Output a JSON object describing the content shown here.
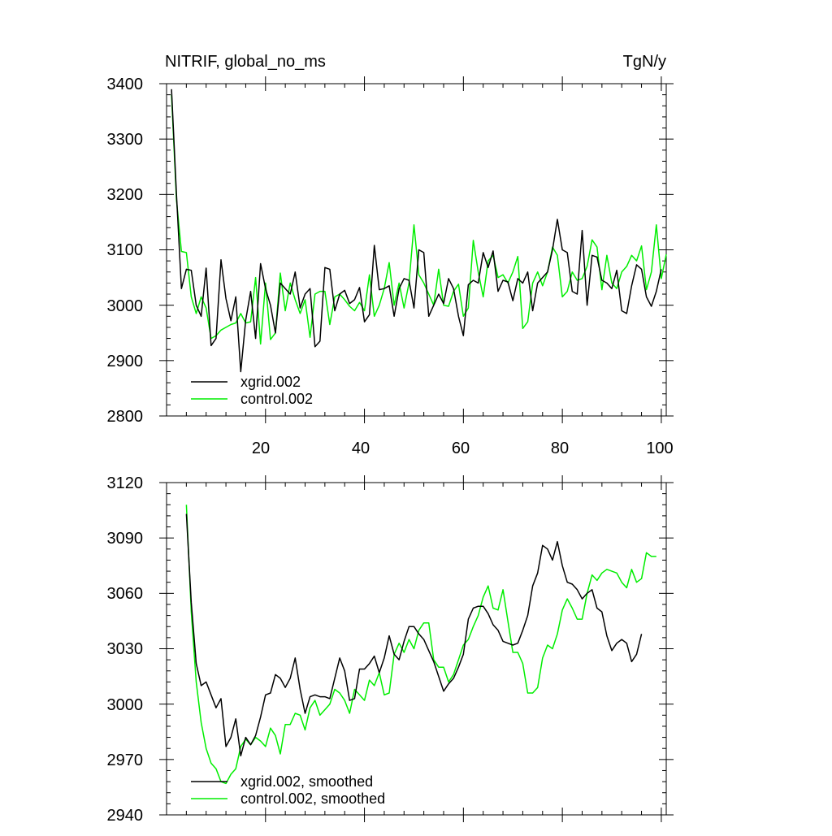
{
  "charts": [
    {
      "title_left": "NITRIF, global_no_ms",
      "title_right": "TgN/y",
      "y_ticks": [
        "3400",
        "3300",
        "3200",
        "3100",
        "3000",
        "2900",
        "2800"
      ],
      "x_ticks": [
        "20",
        "40",
        "60",
        "80",
        "100"
      ],
      "legend": [
        "xgrid.002",
        "control.002"
      ]
    },
    {
      "y_ticks": [
        "3120",
        "3090",
        "3060",
        "3030",
        "3000",
        "2970",
        "2940"
      ],
      "legend": [
        "xgrid.002, smoothed",
        "control.002, smoothed"
      ]
    }
  ],
  "colors": {
    "xgrid": "#000000",
    "control": "#00ee00"
  },
  "chart_data": [
    {
      "type": "line",
      "title": "NITRIF, global_no_ms",
      "units": "TgN/y",
      "xlim": [
        0,
        101
      ],
      "ylim": [
        2800,
        3400
      ],
      "x_ticks": [
        20,
        40,
        60,
        80,
        100
      ],
      "y_ticks": [
        2800,
        2900,
        3000,
        3100,
        3200,
        3300,
        3400
      ],
      "legend_position": "bottom-left",
      "series": [
        {
          "name": "xgrid.002",
          "color": "#000000",
          "x_start": 1,
          "values": [
            3390,
            3200,
            3030,
            3065,
            3063,
            3000,
            2980,
            3067,
            2927,
            2940,
            3082,
            3012,
            2972,
            3015,
            2880,
            2973,
            3025,
            2940,
            3075,
            3030,
            3000,
            2950,
            3040,
            3030,
            3020,
            3060,
            2995,
            3020,
            3030,
            2925,
            2935,
            3068,
            3065,
            2990,
            3020,
            3027,
            3003,
            3010,
            3032,
            2970,
            2983,
            3108,
            3028,
            3030,
            3035,
            2980,
            3030,
            3048,
            3045,
            2995,
            3100,
            3095,
            2980,
            3000,
            3020,
            3003,
            3048,
            3030,
            2980,
            2945,
            3037,
            3045,
            3040,
            3095,
            3068,
            3098,
            3025,
            3045,
            3042,
            3008,
            3048,
            3040,
            3060,
            2990,
            3040,
            3050,
            3060,
            3100,
            3155,
            3100,
            3095,
            3025,
            3020,
            3135,
            3000,
            3090,
            3087,
            3045,
            3040,
            3030,
            3063,
            2990,
            2985,
            3035,
            3073,
            3065,
            3015,
            2998,
            3025,
            3065
          ]
        },
        {
          "name": "control.002",
          "color": "#00ee00",
          "x_start": 1,
          "values": [
            3380,
            3190,
            3097,
            3095,
            3015,
            2985,
            3015,
            2995,
            2940,
            2945,
            2955,
            2960,
            2965,
            2968,
            2985,
            2968,
            2970,
            3050,
            2930,
            3040,
            2938,
            2950,
            3058,
            2990,
            3040,
            3010,
            2985,
            3010,
            2942,
            3020,
            3025,
            3025,
            2965,
            3015,
            3020,
            3010,
            2998,
            2990,
            3005,
            2990,
            3055,
            2980,
            3000,
            3030,
            3077,
            3000,
            3040,
            2995,
            3040,
            3145,
            3055,
            3040,
            3020,
            3000,
            3065,
            3000,
            2998,
            3025,
            3038,
            2980,
            2995,
            3117,
            3060,
            3015,
            3080,
            3090,
            3050,
            3055,
            3040,
            3060,
            3088,
            2958,
            2970,
            3040,
            3060,
            3035,
            3060,
            3105,
            3090,
            3015,
            3025,
            3060,
            3045,
            3048,
            3070,
            3118,
            3105,
            3028,
            3090,
            3040,
            3030,
            3060,
            3070,
            3090,
            3080,
            3107,
            3028,
            3060,
            3145,
            3048,
            3092
          ]
        }
      ]
    },
    {
      "type": "line",
      "title": "",
      "xlim": [
        0,
        101
      ],
      "ylim": [
        2940,
        3120
      ],
      "y_ticks": [
        2940,
        2970,
        3000,
        3030,
        3060,
        3090,
        3120
      ],
      "legend_position": "bottom-left",
      "series": [
        {
          "name": "xgrid.002, smoothed",
          "color": "#000000",
          "x_start": 4,
          "values": [
            3103,
            3055,
            3022,
            3010,
            3012,
            3005,
            2998,
            3003,
            2977,
            2982,
            2992,
            2972,
            2982,
            2978,
            2983,
            2993,
            3005,
            3006,
            3016,
            3014,
            3009,
            3014,
            3025,
            3008,
            2995,
            3004,
            3005,
            3004,
            3004,
            3003,
            3014,
            3025,
            3018,
            3002,
            3003,
            3019,
            3019,
            3022,
            3026,
            3017,
            3025,
            3037,
            3027,
            3024,
            3034,
            3042,
            3042,
            3038,
            3035,
            3029,
            3023,
            3015,
            3007,
            3011,
            3014,
            3020,
            3027,
            3046,
            3052,
            3053,
            3053,
            3049,
            3043,
            3040,
            3034,
            3033,
            3032,
            3033,
            3040,
            3048,
            3064,
            3071,
            3086,
            3084,
            3078,
            3088,
            3075,
            3066,
            3065,
            3062,
            3057,
            3060,
            3062,
            3052,
            3050,
            3037,
            3029,
            3033,
            3035,
            3033,
            3023,
            3027,
            3038
          ]
        },
        {
          "name": "control.002, smoothed",
          "color": "#00ee00",
          "x_start": 4,
          "values": [
            3108,
            3050,
            3012,
            2990,
            2976,
            2968,
            2965,
            2958,
            2957,
            2962,
            2965,
            2977,
            2981,
            2978,
            2982,
            2980,
            2977,
            2987,
            2983,
            2973,
            2989,
            2989,
            2995,
            2994,
            2986,
            2998,
            3002,
            2994,
            2997,
            3000,
            3008,
            3006,
            3002,
            2995,
            3008,
            3005,
            3002,
            3013,
            3010,
            3017,
            3005,
            3006,
            3027,
            3033,
            3028,
            3035,
            3030,
            3040,
            3044,
            3044,
            3024,
            3020,
            3020,
            3012,
            3016,
            3024,
            3032,
            3035,
            3042,
            3048,
            3058,
            3064,
            3052,
            3051,
            3062,
            3045,
            3028,
            3028,
            3022,
            3006,
            3006,
            3009,
            3025,
            3032,
            3030,
            3038,
            3051,
            3057,
            3052,
            3046,
            3046,
            3060,
            3070,
            3067,
            3071,
            3073,
            3072,
            3071,
            3066,
            3063,
            3073,
            3066,
            3068,
            3082,
            3080,
            3080
          ]
        }
      ]
    }
  ]
}
